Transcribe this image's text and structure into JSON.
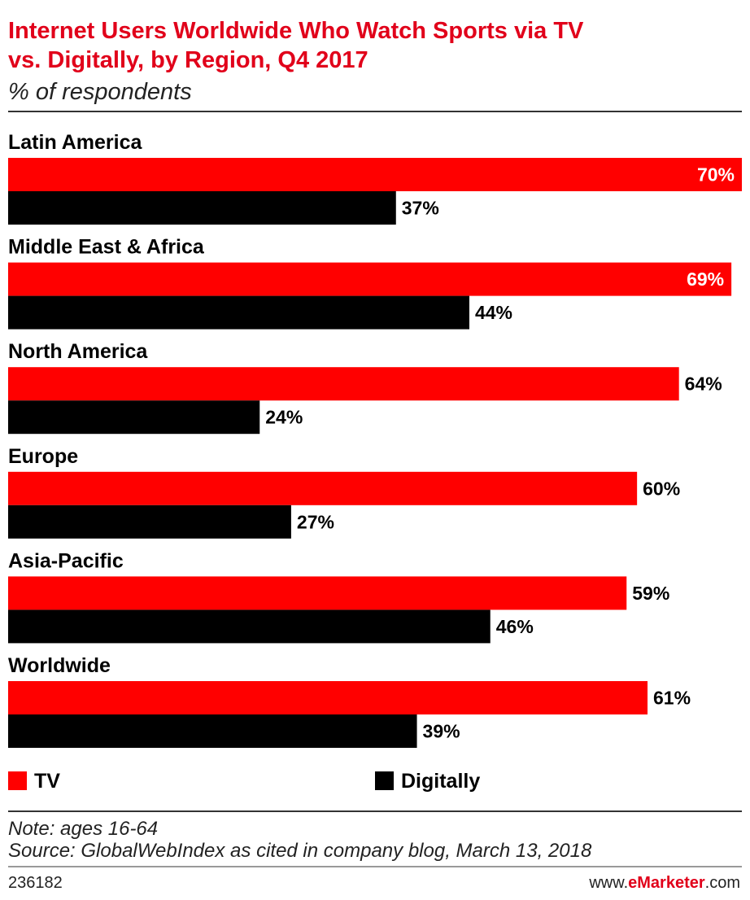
{
  "chart_data": {
    "type": "bar",
    "orientation": "horizontal",
    "title_line1": "Internet Users Worldwide Who Watch Sports via TV",
    "title_line2": "vs. Digitally, by Region, Q4 2017",
    "subtitle": "% of respondents",
    "categories": [
      "Latin America",
      "Middle East & Africa",
      "North America",
      "Europe",
      "Asia-Pacific",
      "Worldwide"
    ],
    "series": [
      {
        "name": "TV",
        "color": "#ff0000",
        "values": [
          70,
          69,
          64,
          60,
          59,
          61
        ]
      },
      {
        "name": "Digitally",
        "color": "#000000",
        "values": [
          37,
          44,
          24,
          27,
          46,
          39
        ]
      }
    ],
    "value_suffix": "%",
    "xlim": [
      0,
      70
    ],
    "grid": false,
    "legend_position": "bottom"
  },
  "note": "Note: ages 16-64",
  "source": "Source: GlobalWebIndex as cited in company blog, March 13, 2018",
  "footer": {
    "chart_id": "236182",
    "site_prefix": "www.",
    "site_brand": "eMarketer",
    "site_suffix": ".com"
  }
}
